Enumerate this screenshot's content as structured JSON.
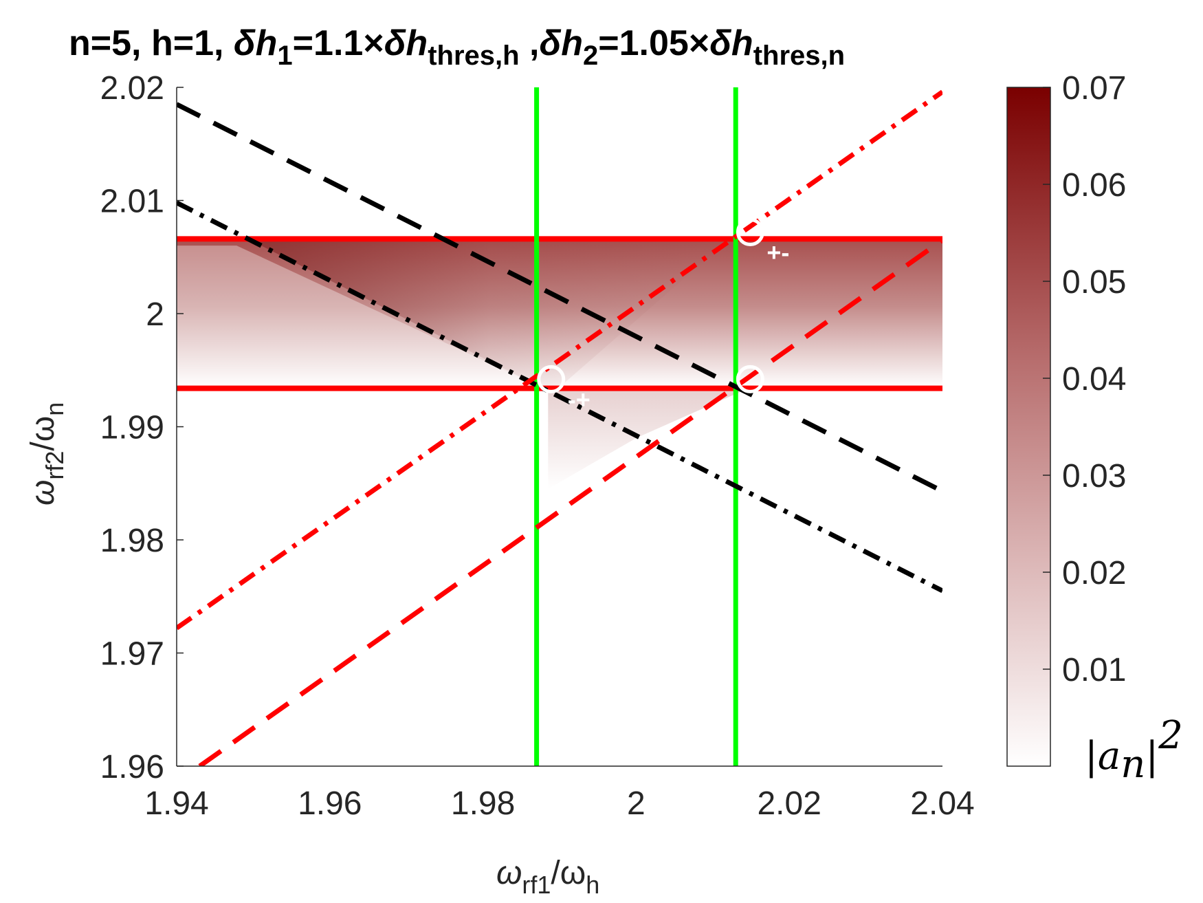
{
  "chart_data": {
    "type": "heatmap",
    "title_parts": {
      "prefix": "n=5, h=1, ",
      "d1_symbol": "δh",
      "d1_sub": "1",
      "d1_value": "=1.1",
      "d1_times": "×",
      "d1_symbol2": "δh",
      "d1_sub2": "thres,h",
      "sep": " ,",
      "d2_symbol": "δh",
      "d2_sub": "2",
      "d2_value": "=1.05",
      "d2_times": "×",
      "d2_symbol2": "δh",
      "d2_sub2": "thres,n"
    },
    "xlabel_parts": {
      "main1": "ω",
      "sub1": "rf1",
      "main2": "/ω",
      "sub2": "h"
    },
    "ylabel_parts": {
      "main1": "ω",
      "sub1": "rf2",
      "main2": "/ω",
      "sub2": "n"
    },
    "xlim": [
      1.94,
      2.04
    ],
    "ylim": [
      1.96,
      2.02
    ],
    "xticks": [
      1.94,
      1.96,
      1.98,
      2.0,
      2.02,
      2.04
    ],
    "xtick_labels": [
      "1.94",
      "1.96",
      "1.98",
      "2",
      "2.02",
      "2.04"
    ],
    "yticks": [
      1.96,
      1.97,
      1.98,
      1.99,
      2.0,
      2.01,
      2.02
    ],
    "ytick_labels": [
      "1.96",
      "1.97",
      "1.98",
      "1.99",
      "2",
      "2.01",
      "2.02"
    ],
    "colorbar": {
      "label": "|a_n|^2",
      "label_parts": {
        "bar_left": "|",
        "a": "a",
        "n": "n",
        "bar_right": "|",
        "exp": "2"
      },
      "range": [
        0,
        0.07
      ],
      "ticks": [
        0.01,
        0.02,
        0.03,
        0.04,
        0.05,
        0.06,
        0.07
      ],
      "tick_labels": [
        "0.01",
        "0.02",
        "0.03",
        "0.04",
        "0.05",
        "0.06",
        "0.07"
      ],
      "color_low": "#ffffff",
      "color_high": "#7a0000"
    },
    "heatmap": {
      "band_y": [
        1.9935,
        2.0065
      ],
      "max_value": 0.066,
      "lower_triangle_max": 0.01
    },
    "lines": [
      {
        "color": "#ff0000",
        "style": "solid",
        "kind": "horizontal",
        "y": 2.0066,
        "x_range": [
          1.94,
          2.04
        ]
      },
      {
        "color": "#ff0000",
        "style": "solid",
        "kind": "horizontal",
        "y": 1.9934,
        "x_range": [
          1.94,
          2.04
        ]
      },
      {
        "color": "#00ff00",
        "style": "solid",
        "kind": "vertical",
        "x": 1.987
      },
      {
        "color": "#00ff00",
        "style": "solid",
        "kind": "vertical",
        "x": 2.013
      },
      {
        "color": "#000000",
        "style": "dashed",
        "x": [
          1.94,
          2.04
        ],
        "y": [
          2.0185,
          1.9843
        ]
      },
      {
        "color": "#000000",
        "style": "dashdot",
        "x": [
          1.94,
          2.04
        ],
        "y": [
          2.0098,
          1.9755
        ]
      },
      {
        "color": "#ff0000",
        "style": "dashdot",
        "x": [
          1.94,
          2.04
        ],
        "y": [
          1.9722,
          2.0196
        ]
      },
      {
        "color": "#ff0000",
        "style": "dashed",
        "x": [
          1.943,
          2.04
        ],
        "y": [
          1.96,
          2.0065
        ]
      }
    ],
    "markers": [
      {
        "x": 2.0149,
        "y": 2.0072,
        "label": "+-"
      },
      {
        "x": 1.9889,
        "y": 1.9942,
        "label": "-+"
      },
      {
        "x": 2.0149,
        "y": 1.9942,
        "label": ""
      }
    ],
    "grid": false
  }
}
